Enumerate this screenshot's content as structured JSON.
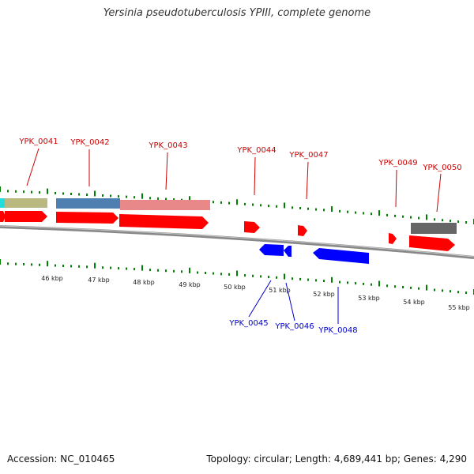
{
  "title": "Yersinia pseudotuberculosis YPIII, complete genome",
  "footer": {
    "accession": "Accession: NC_010465",
    "summary": "Topology: circular; Length: 4,689,441 bp; Genes: 4,290"
  },
  "colors": {
    "forward_gene": "#ff0000",
    "reverse_gene": "#0000ff",
    "forward_label": "#cc0000",
    "reverse_label": "#0000cc",
    "tick": "#008000",
    "backbone": "#888888"
  },
  "scale_labels": [
    "46 kbp",
    "47 kbp",
    "48 kbp",
    "49 kbp",
    "50 kbp",
    "51 kbp",
    "52 kbp",
    "53 kbp",
    "54 kbp",
    "55 kbp"
  ],
  "forward_labels": [
    "YPK_0041",
    "YPK_0042",
    "YPK_0043",
    "YPK_0044",
    "YPK_0047",
    "YPK_0049",
    "YPK_0050"
  ],
  "reverse_labels": [
    "YPK_0045",
    "YPK_0046",
    "YPK_0048"
  ]
}
